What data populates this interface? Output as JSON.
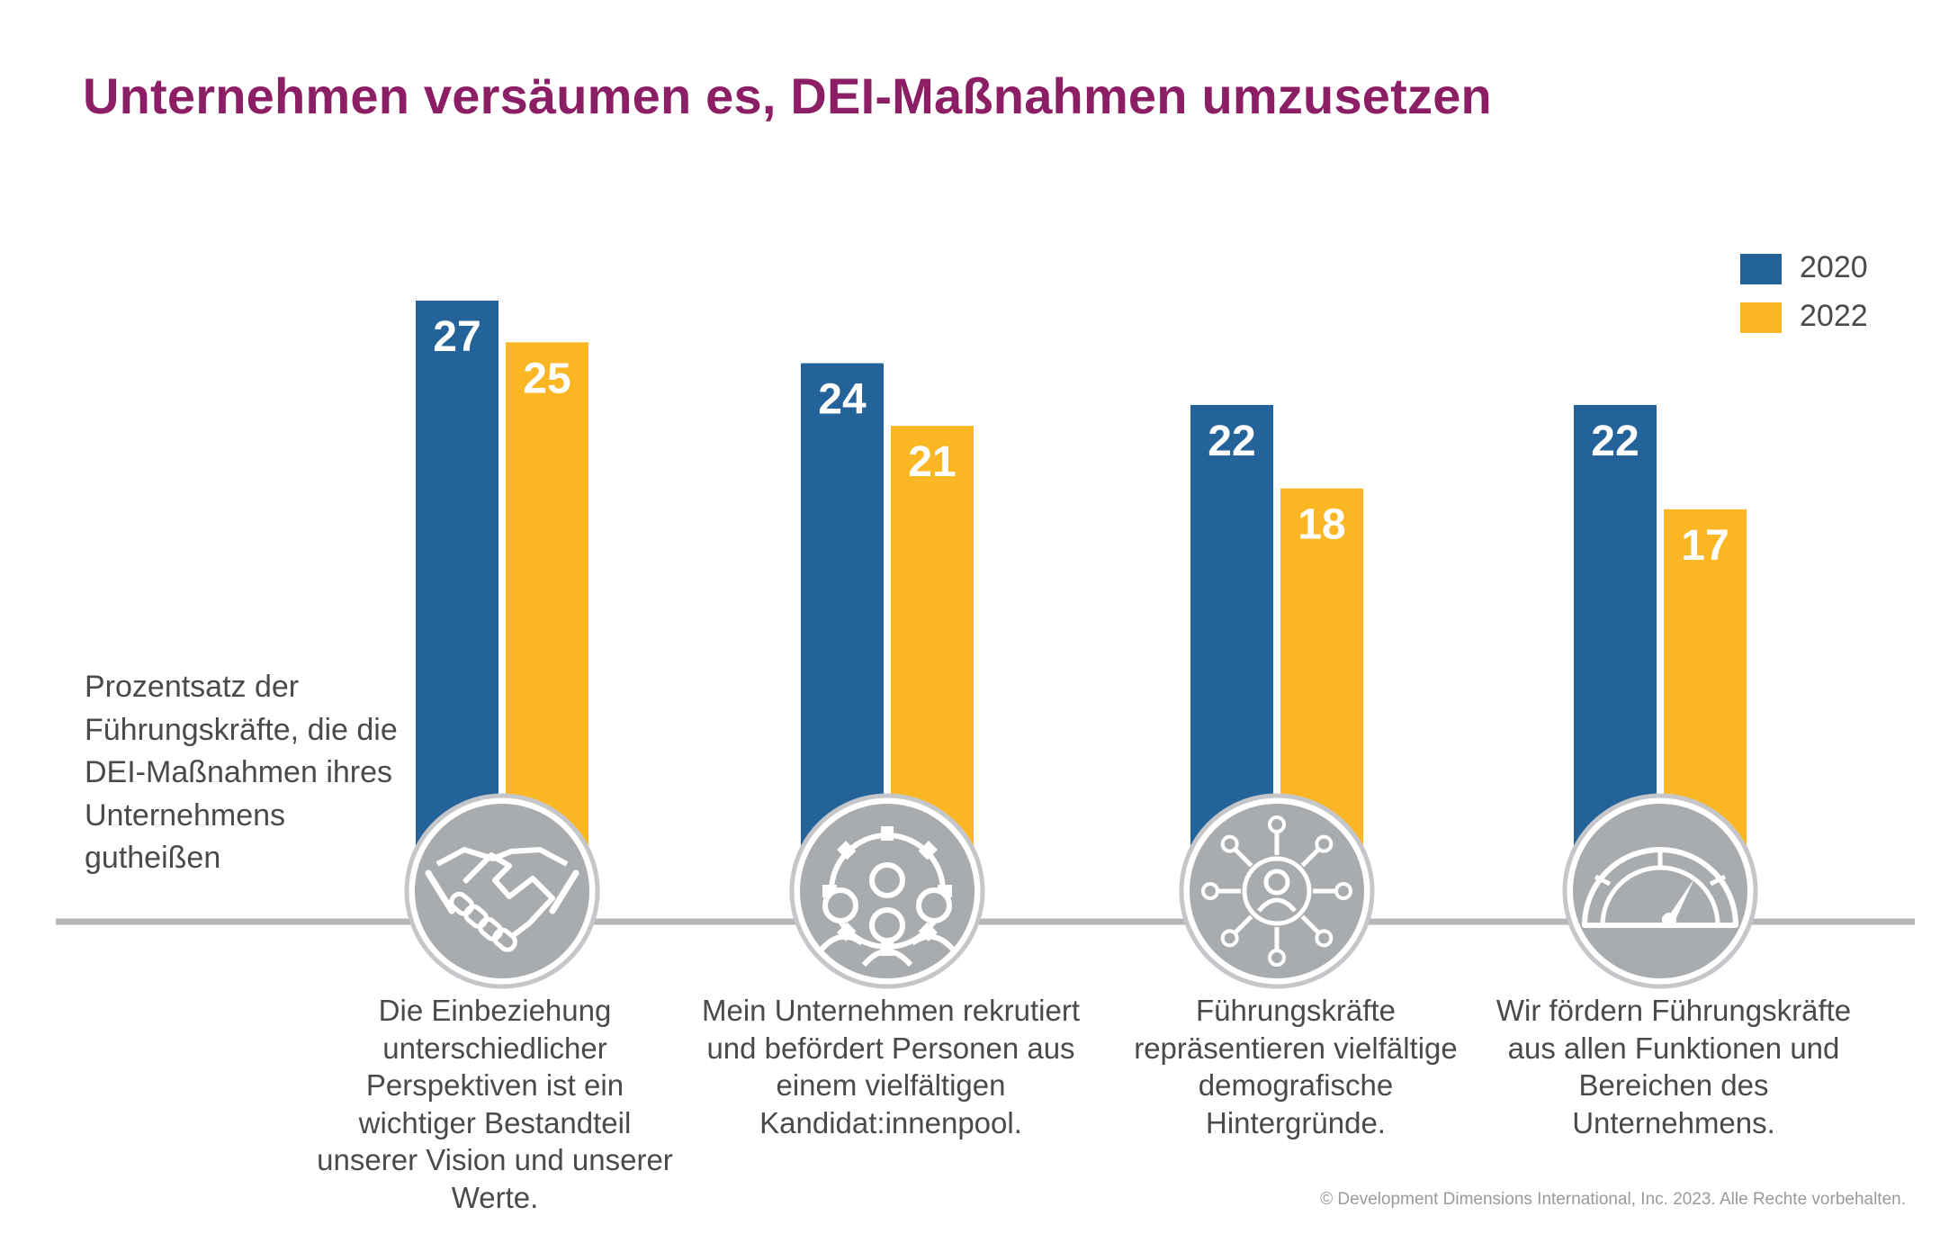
{
  "title": "Unternehmen versäumen es, DEI-Maßnahmen umzusetzen",
  "ylabel": "Prozentsatz der Führungskräfte, die die DEI-Maßnahmen ihres Unternehmens gutheißen",
  "copyright": "© Development Dimensions International, Inc. 2023. Alle Rechte vorbehalten.",
  "colors": {
    "title": "#8b1e64",
    "series_2020": "#24629a",
    "series_2022": "#fbb623",
    "icon": "#a9acaf",
    "baseline": "#b4b7ba"
  },
  "icons": [
    "handshake-icon",
    "people-gear-icon",
    "network-person-icon",
    "speedometer-icon"
  ],
  "chart_data": {
    "type": "bar",
    "title": "Unternehmen versäumen es, DEI-Maßnahmen umzusetzen",
    "xlabel": "",
    "ylabel": "Prozentsatz der Führungskräfte, die die DEI-Maßnahmen ihres Unternehmens gutheißen",
    "ylim": [
      0,
      30
    ],
    "grid": false,
    "legend": "top-right",
    "categories": [
      "Die Einbeziehung unterschiedlicher Perspektiven ist ein wichtiger Bestandteil unserer Vision und unserer Werte.",
      "Mein Unternehmen rekrutiert und befördert Personen aus einem vielfältigen Kandidat:innenpool.",
      "Führungskräfte repräsentieren vielfältige demografische Hintergründe.",
      "Wir fördern Führungskräfte aus allen Funktionen und Bereichen des Unternehmens."
    ],
    "series": [
      {
        "name": "2020",
        "values": [
          27,
          24,
          22,
          22
        ]
      },
      {
        "name": "2022",
        "values": [
          25,
          21,
          18,
          17
        ]
      }
    ]
  }
}
